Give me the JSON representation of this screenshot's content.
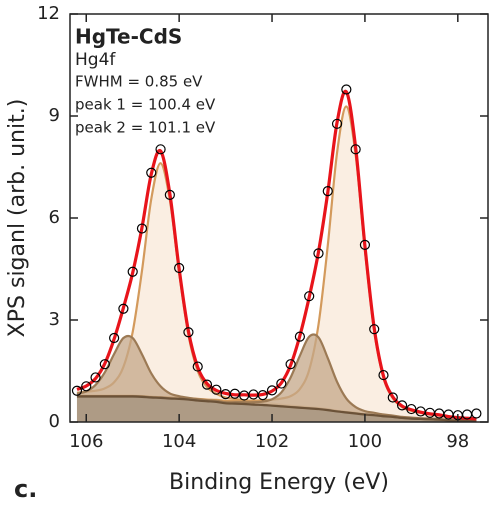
{
  "chart_data": {
    "type": "xps",
    "panel_label": "c.",
    "title": "HgTe-CdS",
    "subtitle": "Hg4f",
    "annotations": [
      "FWHM = 0.85 eV",
      "peak 1 = 100.4 eV",
      "peak 2 = 101.1 eV"
    ],
    "x_label": "Binding Energy (eV)",
    "y_label": "XPS siganl (arb. unit.)",
    "xlim": [
      106.35,
      97.35
    ],
    "xticks": [
      106,
      104,
      102,
      100,
      98
    ],
    "ylim": [
      0,
      12
    ],
    "yticks": [
      12,
      9,
      6,
      3,
      0
    ],
    "x": [
      106.2,
      106.0,
      105.8,
      105.6,
      105.4,
      105.2,
      105.0,
      104.8,
      104.6,
      104.4,
      104.2,
      104.0,
      103.8,
      103.6,
      103.4,
      103.2,
      103.0,
      102.8,
      102.6,
      102.4,
      102.2,
      102.0,
      101.8,
      101.6,
      101.4,
      101.2,
      101.0,
      100.8,
      100.6,
      100.4,
      100.2,
      100.0,
      99.8,
      99.6,
      99.4,
      99.2,
      99.0,
      98.8,
      98.6,
      98.4,
      98.2,
      98.0,
      97.8,
      97.6
    ],
    "series": [
      {
        "kind": "background",
        "color": "#6b5238",
        "fill": "#9a8266",
        "values": [
          0.75,
          0.75,
          0.75,
          0.75,
          0.75,
          0.75,
          0.75,
          0.74,
          0.72,
          0.71,
          0.69,
          0.68,
          0.66,
          0.63,
          0.61,
          0.59,
          0.55,
          0.54,
          0.53,
          0.51,
          0.5,
          0.48,
          0.46,
          0.44,
          0.42,
          0.4,
          0.38,
          0.35,
          0.31,
          0.28,
          0.25,
          0.22,
          0.2,
          0.17,
          0.15,
          0.12,
          0.1,
          0.09,
          0.08,
          0.07,
          0.05,
          0.04,
          0.04,
          0.03
        ]
      },
      {
        "kind": "component",
        "stack_on": 0,
        "color": "#d39a5c",
        "fill": "#f8e8d8",
        "values": [
          0.11,
          0.14,
          0.17,
          0.24,
          0.42,
          0.87,
          1.9,
          3.71,
          5.84,
          6.9,
          5.84,
          3.71,
          1.9,
          0.87,
          0.42,
          0.24,
          0.17,
          0.14,
          0.11,
          0.09,
          0.07,
          0.06,
          0.05,
          0.04,
          0.04,
          0.03,
          0.03,
          0.03,
          0.02,
          0.02,
          0.02,
          0.02,
          0.02,
          0.01,
          0.01,
          0.01,
          0.01,
          0.01,
          0.01,
          0.01,
          0.01,
          0.01,
          0.01,
          0.01
        ]
      },
      {
        "kind": "component",
        "stack_on": 0,
        "color": "#d39a5c",
        "fill": "#f8e8d8",
        "values": [
          0.02,
          0.02,
          0.02,
          0.02,
          0.02,
          0.02,
          0.02,
          0.02,
          0.02,
          0.02,
          0.03,
          0.03,
          0.04,
          0.05,
          0.05,
          0.06,
          0.07,
          0.08,
          0.1,
          0.12,
          0.14,
          0.18,
          0.23,
          0.32,
          0.55,
          1.13,
          2.48,
          4.84,
          7.61,
          9.0,
          7.61,
          4.84,
          2.48,
          1.13,
          0.55,
          0.32,
          0.23,
          0.18,
          0.14,
          0.12,
          0.1,
          0.08,
          0.07,
          0.06
        ]
      },
      {
        "kind": "component",
        "stack_on": 0,
        "color": "#9c7a55",
        "fill": "#c4a788",
        "values": [
          0.08,
          0.15,
          0.34,
          0.71,
          1.25,
          1.72,
          1.72,
          1.25,
          0.71,
          0.34,
          0.15,
          0.08,
          0.05,
          0.04,
          0.03,
          0.03,
          0.02,
          0.02,
          0.02,
          0.02,
          0.01,
          0.01,
          0.01,
          0.01,
          0.01,
          0.01,
          0.01,
          0.01,
          0.01,
          0.01,
          0.01,
          0,
          0,
          0,
          0,
          0,
          0,
          0,
          0,
          0,
          0,
          0,
          0,
          0
        ]
      },
      {
        "kind": "component",
        "stack_on": 0,
        "color": "#9c7a55",
        "fill": "#c4a788",
        "values": [
          0.01,
          0.01,
          0.01,
          0.01,
          0.01,
          0.01,
          0.01,
          0.01,
          0.01,
          0.01,
          0.01,
          0.01,
          0.02,
          0.02,
          0.02,
          0.03,
          0.03,
          0.04,
          0.05,
          0.07,
          0.1,
          0.19,
          0.41,
          0.87,
          1.53,
          2.11,
          2.11,
          1.53,
          0.87,
          0.41,
          0.19,
          0.1,
          0.07,
          0.05,
          0.04,
          0.03,
          0.03,
          0.02,
          0.02,
          0.02,
          0.01,
          0.01,
          0.01,
          0.01
        ]
      },
      {
        "kind": "markers",
        "color": "#000000",
        "values": [
          0.92,
          1.05,
          1.31,
          1.7,
          2.47,
          3.33,
          4.42,
          5.69,
          7.33,
          8.02,
          6.68,
          4.53,
          2.64,
          1.63,
          1.1,
          0.95,
          0.82,
          0.83,
          0.78,
          0.81,
          0.79,
          0.93,
          1.13,
          1.7,
          2.51,
          3.7,
          4.96,
          6.79,
          8.77,
          9.78,
          8.02,
          5.21,
          2.73,
          1.38,
          0.72,
          0.49,
          0.38,
          0.31,
          0.27,
          0.25,
          0.22,
          0.2,
          0.22,
          0.25
        ]
      },
      {
        "kind": "line",
        "color": "#e8141b",
        "values": [
          0.96,
          1.06,
          1.28,
          1.72,
          2.44,
          3.36,
          4.39,
          5.72,
          7.29,
          7.97,
          6.71,
          4.5,
          2.67,
          1.61,
          1.13,
          0.93,
          0.84,
          0.8,
          0.8,
          0.79,
          0.81,
          0.91,
          1.15,
          1.67,
          2.54,
          3.67,
          5.0,
          6.75,
          8.81,
          9.71,
          8.07,
          5.18,
          2.76,
          1.35,
          0.74,
          0.47,
          0.36,
          0.29,
          0.24,
          0.21,
          0.16,
          0.13,
          0.11,
          0.09
        ]
      }
    ]
  }
}
